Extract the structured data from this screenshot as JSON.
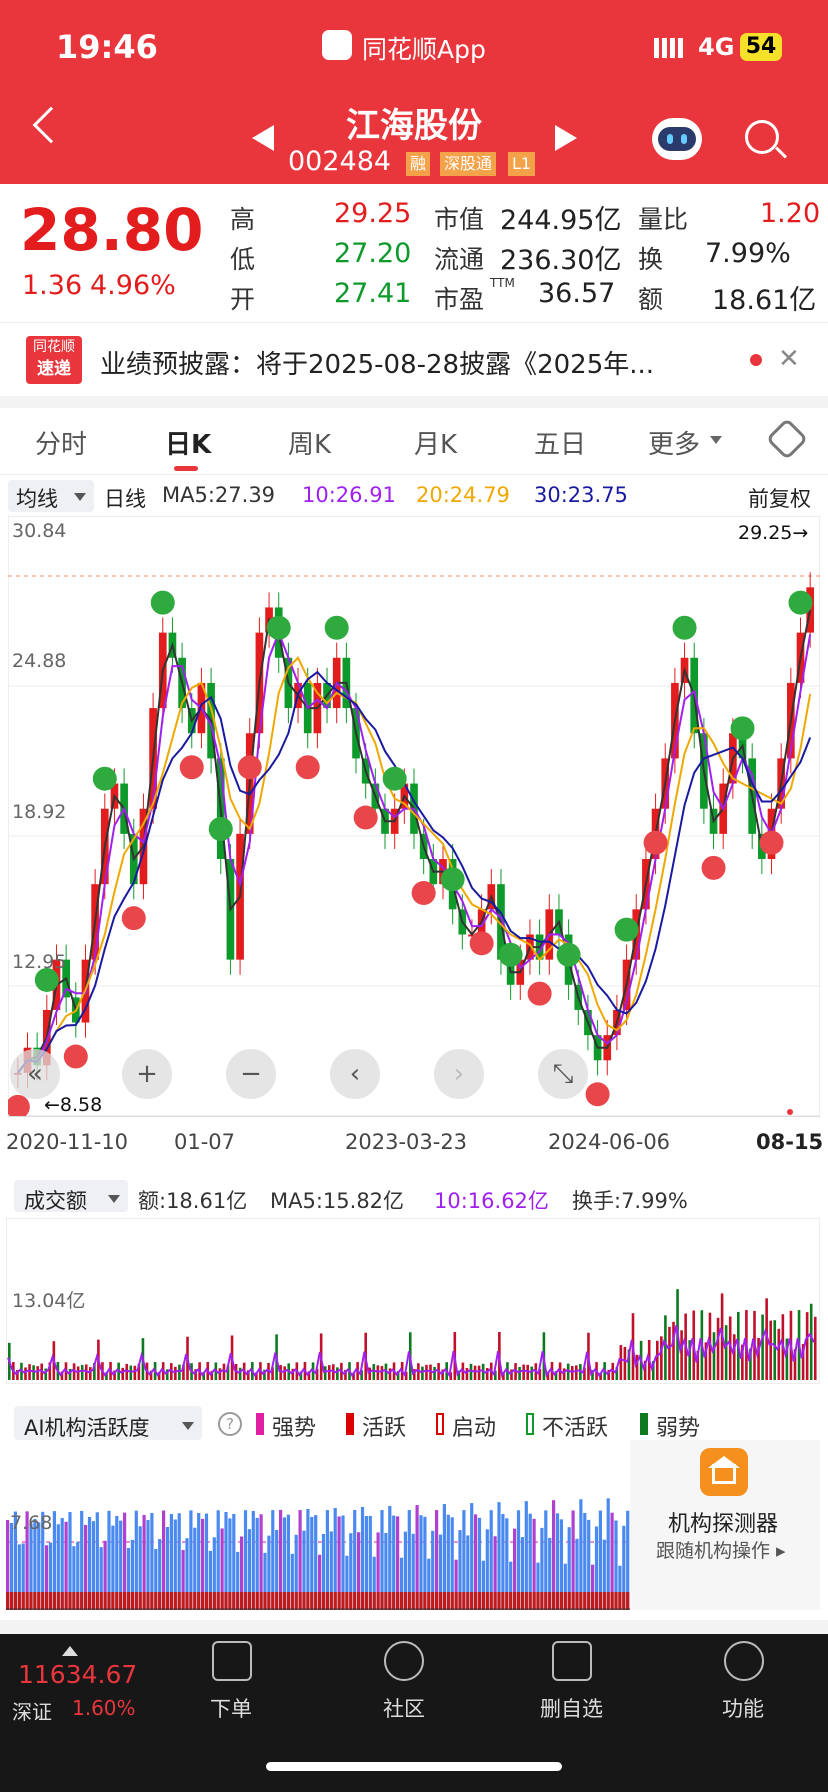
{
  "status": {
    "time": "19:46",
    "app": "同花顺App",
    "network": "4G",
    "battery": "54"
  },
  "stock": {
    "name": "江海股份",
    "code": "002484",
    "tags": [
      "融",
      "深股通",
      "L1"
    ],
    "price": "28.80",
    "change": "1.36",
    "pct": "4.96%"
  },
  "stats": {
    "high_l": "高",
    "high": "29.25",
    "low_l": "低",
    "low": "27.20",
    "open_l": "开",
    "open": "27.41",
    "mcap_l": "市值",
    "mcap": "244.95亿",
    "float_l": "流通",
    "float": "236.30亿",
    "pe_l": "市盈",
    "pe_sup": "TTM",
    "pe": "36.57",
    "vr_l": "量比",
    "vr": "1.20",
    "turn_l": "换",
    "turn": "7.99%",
    "amt_l": "额",
    "amt": "18.61亿"
  },
  "news": {
    "badge1": "同花顺",
    "badge2": "速递",
    "text": "业绩预披露：将于2025-08-28披露《2025年..."
  },
  "tabs": [
    "分时",
    "日K",
    "周K",
    "月K",
    "五日",
    "更多"
  ],
  "ma": {
    "type": "均线",
    "period": "日线",
    "ma5": "MA5:27.39",
    "ma10": "10:26.91",
    "ma20": "20:24.79",
    "ma30": "30:23.75",
    "adj": "前复权"
  },
  "axis": {
    "y": [
      "30.84",
      "24.88",
      "18.92",
      "12.95",
      "8.58"
    ],
    "hi": "29.25→",
    "lo": "←8.58",
    "dates": [
      "2020-11-10",
      "01-07",
      "2023-03-23",
      "2024-06-06",
      "08-15"
    ]
  },
  "amount": {
    "label": "成交额",
    "amt": "额:18.61亿",
    "ma5": "MA5:15.82亿",
    "ma10": "10:16.62亿",
    "turn": "换手:7.99%",
    "tick": "13.04亿"
  },
  "ai": {
    "label": "AI机构活跃度",
    "l1": "强势",
    "l2": "活跃",
    "l3": "启动",
    "l4": "不活跃",
    "l5": "弱势",
    "tick": "7.68",
    "title": "机构探测器",
    "sub": "跟随机构操作 ▸"
  },
  "nav": {
    "index": "11634.67",
    "market": "深证",
    "pct": "1.60%",
    "b1": "下单",
    "b2": "社区",
    "b3": "删自选",
    "b4": "功能"
  },
  "colors": {
    "red": "#e8363c",
    "up": "#e31d1d",
    "down": "#0d9a2b",
    "ma10": "#a020f0",
    "ma20": "#f0a800",
    "ma30": "#1a1aa0"
  },
  "chart_data": {
    "type": "candlestick",
    "note": "approximate price series read from chart",
    "x": [
      "2020-11-10",
      "01-07",
      "2023-03-23",
      "2024-06-06",
      "08-15"
    ],
    "closes": [
      9.5,
      10.5,
      9.8,
      12,
      14,
      12.5,
      11.5,
      14,
      17,
      20,
      21,
      19,
      17,
      20,
      24,
      27,
      26,
      24,
      23,
      25,
      22,
      18,
      14,
      19,
      23,
      27,
      28,
      26,
      24,
      25,
      23,
      25,
      24,
      26,
      24,
      22,
      21,
      20,
      19,
      20,
      21,
      19,
      18,
      17,
      18,
      16,
      15,
      15,
      16,
      17,
      14,
      13,
      14,
      15,
      14,
      16,
      15,
      13,
      12,
      11,
      10,
      11,
      12,
      14,
      16,
      18,
      20,
      22,
      25,
      26,
      23,
      20,
      19,
      21,
      23,
      22,
      19,
      18,
      20,
      22,
      25,
      27,
      28.8
    ],
    "ylim": [
      8.58,
      30.84
    ]
  }
}
